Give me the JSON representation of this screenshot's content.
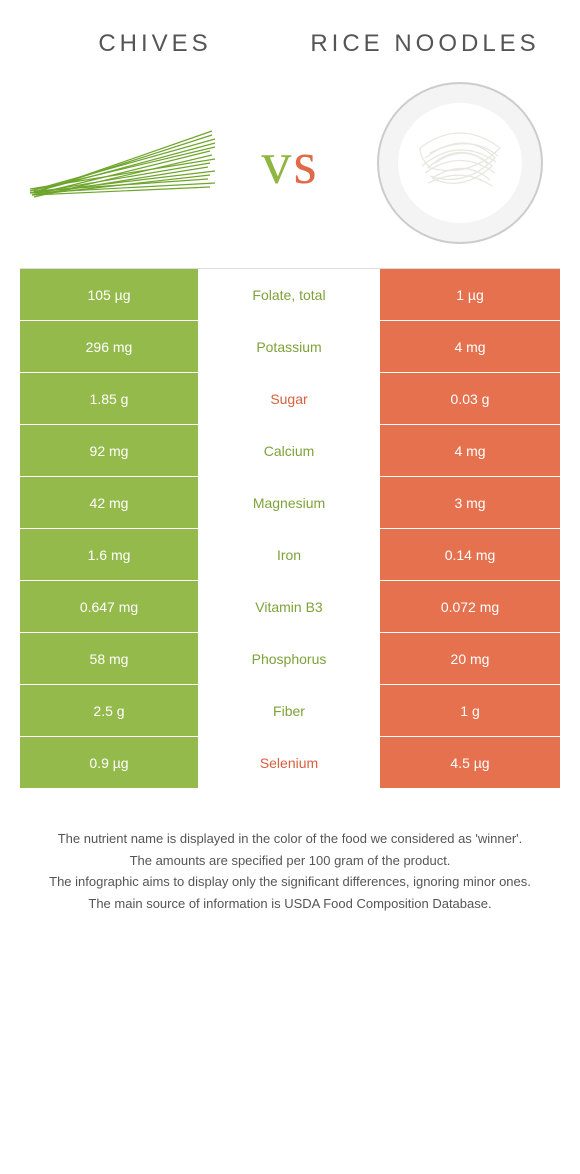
{
  "header": {
    "left_title": "CHIVES",
    "right_title": "RICE NOODLES",
    "vs": "vs"
  },
  "colors": {
    "green": "#95ba4c",
    "orange": "#e5714e",
    "green_text": "#7da23a",
    "orange_text": "#d95f3e",
    "background": "#ffffff"
  },
  "rows": [
    {
      "nutrient": "Folate, total",
      "left": "105 µg",
      "right": "1 µg",
      "winner": "left"
    },
    {
      "nutrient": "Potassium",
      "left": "296 mg",
      "right": "4 mg",
      "winner": "left"
    },
    {
      "nutrient": "Sugar",
      "left": "1.85 g",
      "right": "0.03 g",
      "winner": "right"
    },
    {
      "nutrient": "Calcium",
      "left": "92 mg",
      "right": "4 mg",
      "winner": "left"
    },
    {
      "nutrient": "Magnesium",
      "left": "42 mg",
      "right": "3 mg",
      "winner": "left"
    },
    {
      "nutrient": "Iron",
      "left": "1.6 mg",
      "right": "0.14 mg",
      "winner": "left"
    },
    {
      "nutrient": "Vitamin B3",
      "left": "0.647 mg",
      "right": "0.072 mg",
      "winner": "left"
    },
    {
      "nutrient": "Phosphorus",
      "left": "58 mg",
      "right": "20 mg",
      "winner": "left"
    },
    {
      "nutrient": "Fiber",
      "left": "2.5 g",
      "right": "1 g",
      "winner": "left"
    },
    {
      "nutrient": "Selenium",
      "left": "0.9 µg",
      "right": "4.5 µg",
      "winner": "right"
    }
  ],
  "footnotes": [
    "The nutrient name is displayed in the color of the food we considered as 'winner'.",
    "The amounts are specified per 100 gram of the product.",
    "The infographic aims to display only the significant differences, ignoring minor ones.",
    "The main source of information is USDA Food Composition Database."
  ]
}
